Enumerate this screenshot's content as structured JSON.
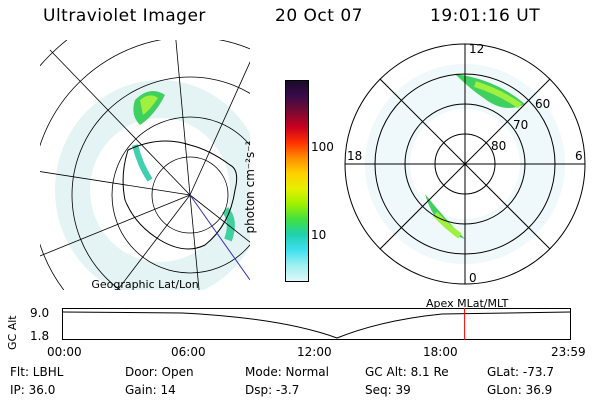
{
  "header": {
    "title": "Ultraviolet Imager",
    "date": "20 Oct 07",
    "time": "19:01:16 UT"
  },
  "left_map": {
    "caption": "Geographic Lat/Lon"
  },
  "right_map": {
    "caption": "Apex MLat/MLT",
    "mlt_labels": {
      "top": "12",
      "left": "18",
      "right": "6",
      "bottom": "0"
    },
    "lat_labels": [
      "60",
      "70",
      "80"
    ]
  },
  "colorbar": {
    "unit_label": "photon cm⁻²s⁻¹",
    "ticks": [
      "100",
      "10"
    ],
    "colors": [
      "#1a0a2a",
      "#3a0a4a",
      "#7a0a30",
      "#c80020",
      "#ff3000",
      "#ff8c00",
      "#ffd000",
      "#e6f000",
      "#a0f000",
      "#40e040",
      "#20d0b0",
      "#40e0f0",
      "#a0f0f0",
      "#dff8f8"
    ]
  },
  "timeline": {
    "ylabel": "GC Alt",
    "y_ticks": [
      "9.0",
      "1.8"
    ],
    "x_ticks": [
      "00:00",
      "06:00",
      "12:00",
      "18:00",
      "23:59"
    ],
    "current_time_marker_color": "#ff0000",
    "current_time_fraction": 0.7925
  },
  "info": {
    "flt": "Flt: LBHL",
    "door": "Door: Open",
    "mode": "Mode: Normal",
    "gc_alt": "GC Alt: 8.1 Re",
    "glat": "GLat: -73.7",
    "ip": "IP: 36.0",
    "gain": "Gain: 14",
    "dsp": "Dsp:    -3.7",
    "seq": "Seq: 39",
    "glon": "GLon:  36.9"
  }
}
